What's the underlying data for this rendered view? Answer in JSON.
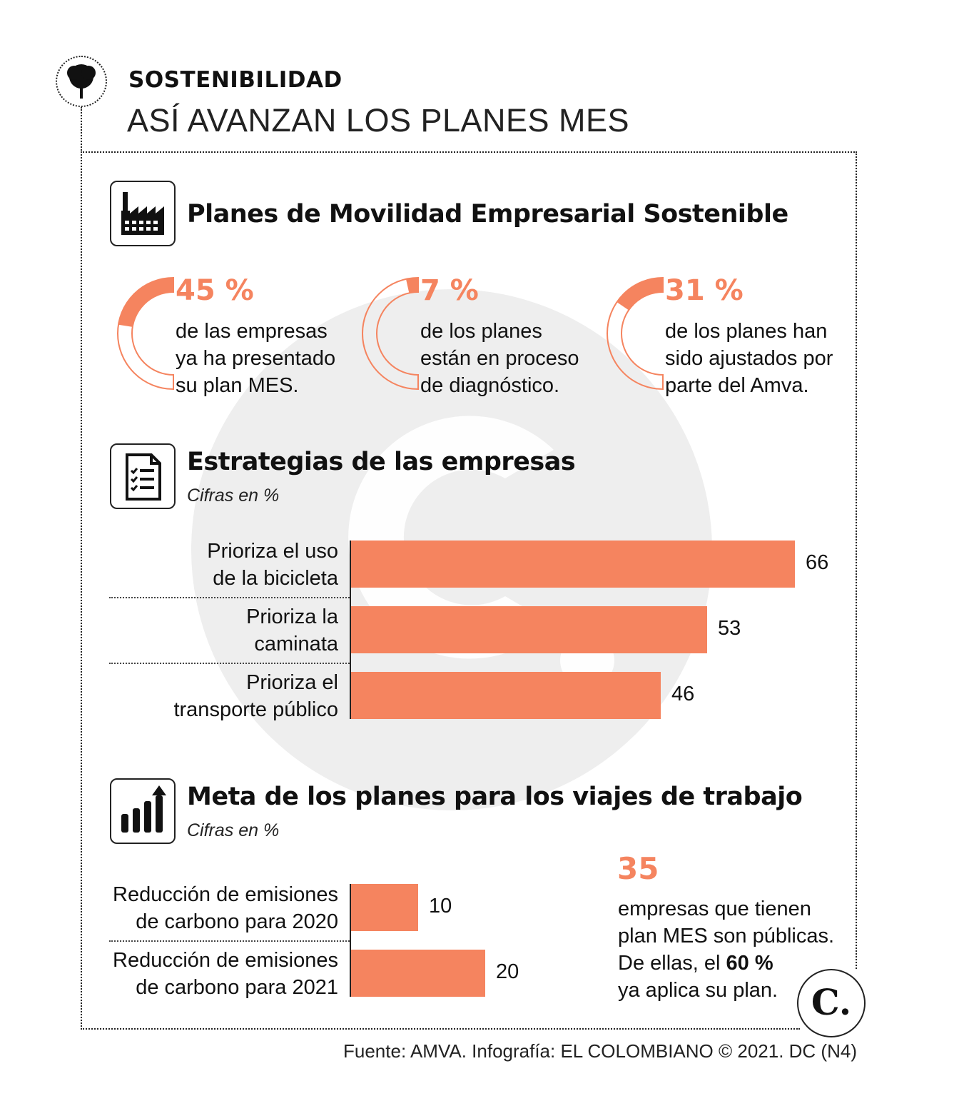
{
  "header": {
    "kicker": "SOSTENIBILIDAD",
    "headline": "ASÍ AVANZAN LOS PLANES MES",
    "icon": "tree-icon"
  },
  "section1": {
    "title": "Planes de Movilidad Empresarial Sostenible",
    "icon": "factory-icon",
    "stats": [
      {
        "pct_label": "45 %",
        "value": 45,
        "lines": [
          "de las empresas",
          "ya ha presentado",
          "su plan MES."
        ]
      },
      {
        "pct_label": "7 %",
        "value": 7,
        "lines": [
          "de los planes",
          "están en proceso",
          "de diagnóstico."
        ]
      },
      {
        "pct_label": "31 %",
        "value": 31,
        "lines": [
          "de los planes han",
          "sido ajustados por",
          "parte del Amva."
        ]
      }
    ]
  },
  "section2": {
    "title": "Estrategias de las empresas",
    "subtitle": "Cifras en %",
    "icon": "checklist-document-icon"
  },
  "section3": {
    "title": "Meta de los planes para los viajes de trabajo",
    "subtitle": "Cifras en %",
    "icon": "bar-chart-arrow-icon",
    "note": {
      "number": "35",
      "line1": "empresas que tienen",
      "line2": "plan MES son públicas.",
      "line3_prefix": "De ellas, el ",
      "line3_bold": "60 %",
      "line4": "ya aplica su plan."
    }
  },
  "chart_data": [
    {
      "type": "bar",
      "orientation": "horizontal",
      "title": "Estrategias de las empresas",
      "subtitle": "Cifras en %",
      "categories": [
        [
          "Prioriza el uso",
          "de la bicicleta"
        ],
        [
          "Prioriza la",
          "caminata"
        ],
        [
          "Prioriza el",
          "transporte público"
        ]
      ],
      "values": [
        66,
        53,
        46
      ],
      "max": 66
    },
    {
      "type": "bar",
      "orientation": "horizontal",
      "title": "Meta de los planes para los viajes de trabajo",
      "subtitle": "Cifras en %",
      "categories": [
        [
          "Reducción de emisiones",
          "de carbono para 2020"
        ],
        [
          "Reducción de emisiones",
          "de carbono para 2021"
        ]
      ],
      "values": [
        10,
        20
      ],
      "max": 66
    }
  ],
  "colors": {
    "accent": "#f5845f",
    "watermark": "#eeeeee",
    "text": "#111111"
  },
  "footer": {
    "source": "Fuente: AMVA. Infografía: EL COLOMBIANO © 2021. DC (N4)",
    "logo_letter": "C.",
    "logo_icon": "el-colombiano-logo-icon"
  }
}
